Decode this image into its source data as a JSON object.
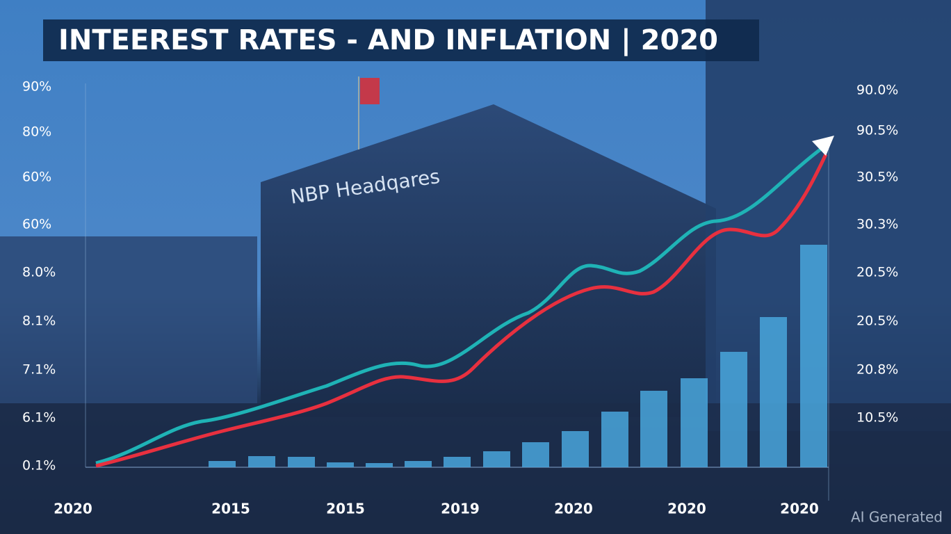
{
  "header": {
    "title": "INTEERESТ  RATES - AND INFLATION | 2020"
  },
  "sign": "NBP Headqares",
  "left_axis": [
    "90%",
    "80%",
    "60%",
    "60%",
    "8.0%",
    "8.1%",
    "7.1%",
    "6.1%",
    "0.1%"
  ],
  "right_axis": [
    "90.0%",
    "90.5%",
    "30.5%",
    "30.3%",
    "20.5%",
    "20.5%",
    "20.8%",
    "10.5%"
  ],
  "x_axis": [
    "2020",
    "2015",
    "2015",
    "2019",
    "2020",
    "2020",
    "2020"
  ],
  "watermark": "AI Generated"
}
